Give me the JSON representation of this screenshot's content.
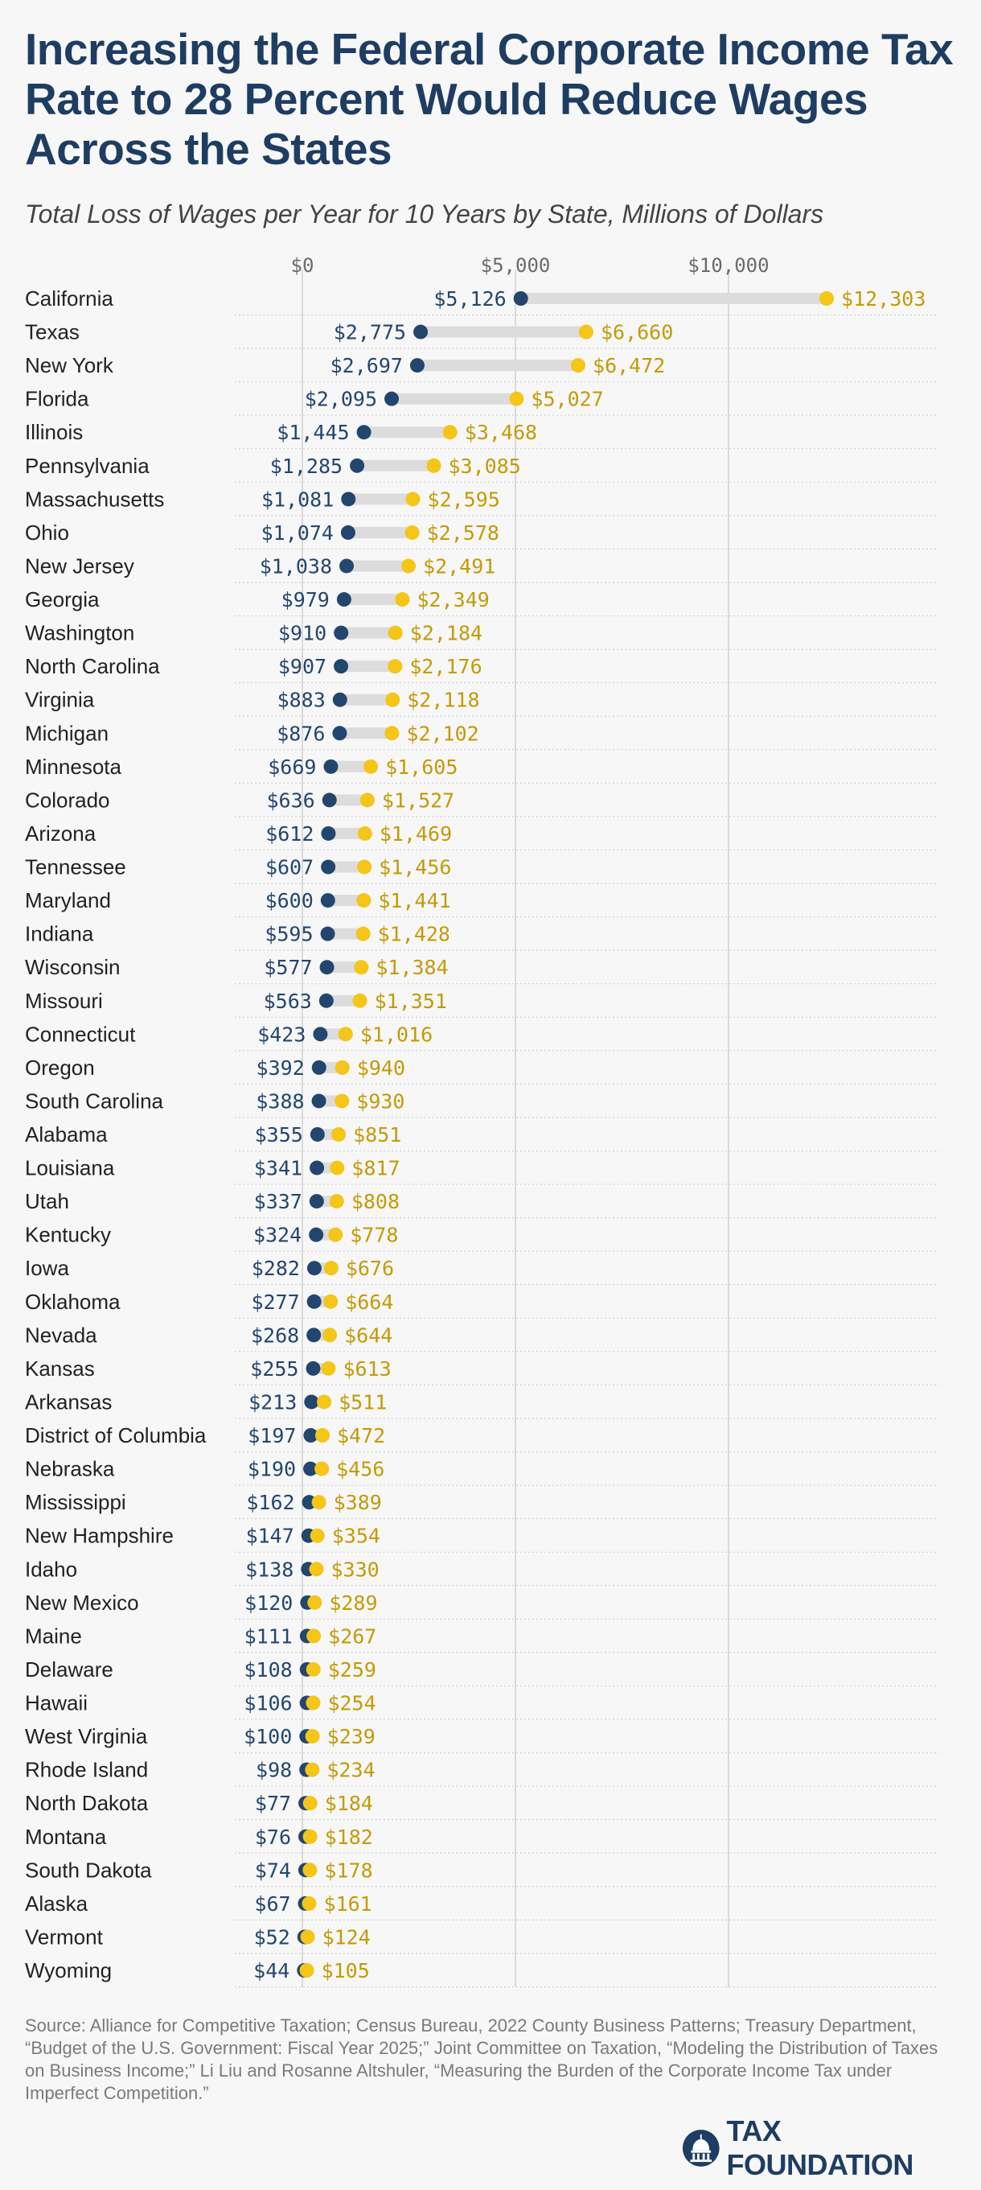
{
  "header": {
    "title": "Increasing the Federal Corporate Income Tax Rate to 28 Percent Would Reduce Wages Across the States",
    "subtitle": "Total Loss of Wages per Year for 10 Years by State, Millions of Dollars"
  },
  "colors": {
    "low": "#23466f",
    "high": "#f5c518",
    "high_label": "#c49a06",
    "bar": "#dcdcdc",
    "title": "#1e3d63"
  },
  "chart_data": {
    "type": "dumbbell",
    "title": "Total Loss of Wages per Year for 10 Years by State, Millions of Dollars",
    "xlim": [
      -1500,
      13000
    ],
    "x_ticks": [
      0,
      5000,
      10000
    ],
    "x_tick_labels": [
      "$0",
      "$5,000",
      "$10,000"
    ],
    "grid": true,
    "categories": [
      "California",
      "Texas",
      "New York",
      "Florida",
      "Illinois",
      "Pennsylvania",
      "Massachusetts",
      "Ohio",
      "New Jersey",
      "Georgia",
      "Washington",
      "North Carolina",
      "Virginia",
      "Michigan",
      "Minnesota",
      "Colorado",
      "Arizona",
      "Tennessee",
      "Maryland",
      "Indiana",
      "Wisconsin",
      "Missouri",
      "Connecticut",
      "Oregon",
      "South Carolina",
      "Alabama",
      "Louisiana",
      "Utah",
      "Kentucky",
      "Iowa",
      "Oklahoma",
      "Nevada",
      "Kansas",
      "Arkansas",
      "District of Columbia",
      "Nebraska",
      "Mississippi",
      "New Hampshire",
      "Idaho",
      "New Mexico",
      "Maine",
      "Delaware",
      "Hawaii",
      "West Virginia",
      "Rhode Island",
      "North Dakota",
      "Montana",
      "South Dakota",
      "Alaska",
      "Vermont",
      "Wyoming"
    ],
    "series": [
      {
        "values": [
          5126,
          2775,
          2697,
          2095,
          1445,
          1285,
          1081,
          1074,
          1038,
          979,
          910,
          907,
          883,
          876,
          669,
          636,
          612,
          607,
          600,
          595,
          577,
          563,
          423,
          392,
          388,
          355,
          341,
          337,
          324,
          282,
          277,
          268,
          255,
          213,
          197,
          190,
          162,
          147,
          138,
          120,
          111,
          108,
          106,
          100,
          98,
          77,
          76,
          74,
          67,
          52,
          44
        ],
        "labels": [
          "$5,126",
          "$2,775",
          "$2,697",
          "$2,095",
          "$1,445",
          "$1,285",
          "$1,081",
          "$1,074",
          "$1,038",
          "$979",
          "$910",
          "$907",
          "$883",
          "$876",
          "$669",
          "$636",
          "$612",
          "$607",
          "$600",
          "$595",
          "$577",
          "$563",
          "$423",
          "$392",
          "$388",
          "$355",
          "$341",
          "$337",
          "$324",
          "$282",
          "$277",
          "$268",
          "$255",
          "$213",
          "$197",
          "$190",
          "$162",
          "$147",
          "$138",
          "$120",
          "$111",
          "$108",
          "$106",
          "$100",
          "$98",
          "$77",
          "$76",
          "$74",
          "$67",
          "$52",
          "$44"
        ]
      },
      {
        "values": [
          12303,
          6660,
          6472,
          5027,
          3468,
          3085,
          2595,
          2578,
          2491,
          2349,
          2184,
          2176,
          2118,
          2102,
          1605,
          1527,
          1469,
          1456,
          1441,
          1428,
          1384,
          1351,
          1016,
          940,
          930,
          851,
          817,
          808,
          778,
          676,
          664,
          644,
          613,
          511,
          472,
          456,
          389,
          354,
          330,
          289,
          267,
          259,
          254,
          239,
          234,
          184,
          182,
          178,
          161,
          124,
          105
        ],
        "labels": [
          "$12,303",
          "$6,660",
          "$6,472",
          "$5,027",
          "$3,468",
          "$3,085",
          "$2,595",
          "$2,578",
          "$2,491",
          "$2,349",
          "$2,184",
          "$2,176",
          "$2,118",
          "$2,102",
          "$1,605",
          "$1,527",
          "$1,469",
          "$1,456",
          "$1,441",
          "$1,428",
          "$1,384",
          "$1,351",
          "$1,016",
          "$940",
          "$930",
          "$851",
          "$817",
          "$808",
          "$778",
          "$676",
          "$664",
          "$644",
          "$613",
          "$511",
          "$472",
          "$456",
          "$389",
          "$354",
          "$330",
          "$289",
          "$267",
          "$259",
          "$254",
          "$239",
          "$234",
          "$184",
          "$182",
          "$178",
          "$161",
          "$124",
          "$105"
        ]
      }
    ]
  },
  "footer": {
    "source": "Source: Alliance for Competitive Taxation; Census Bureau, 2022 County Business Patterns; Treasury Department, “Budget of the U.S. Government: Fiscal Year 2025;” Joint Committee on Taxation, “Modeling the Distribution of Taxes on Business Income;” Li Liu and Rosanne Altshuler, “Measuring the Burden of the Corporate Income Tax under Imperfect Competition.”",
    "logo_text": "TAX FOUNDATION",
    "logo_icon": "capitol-dome-icon"
  }
}
